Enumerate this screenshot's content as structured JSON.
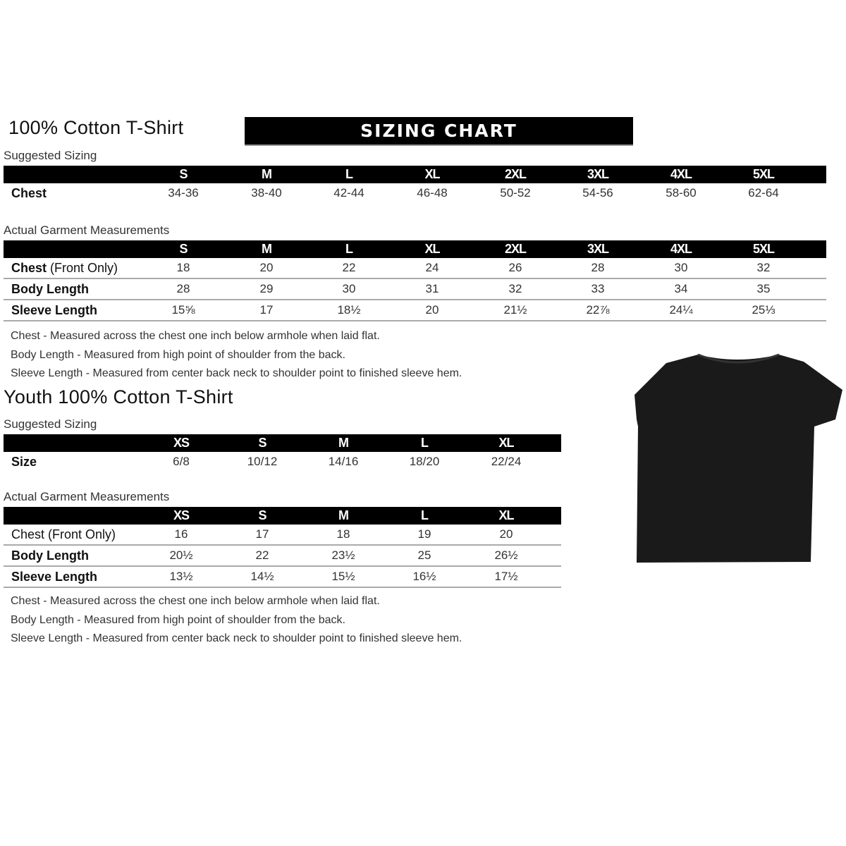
{
  "adult": {
    "title": "100% Cotton T-Shirt",
    "banner": "SIZING CHART",
    "suggested_label": "Suggested Sizing",
    "sizes": [
      "S",
      "M",
      "L",
      "XL",
      "2XL",
      "3XL",
      "4XL",
      "5XL"
    ],
    "suggested_rows": [
      {
        "label": "Chest",
        "values": [
          "34-36",
          "38-40",
          "42-44",
          "46-48",
          "50-52",
          "54-56",
          "58-60",
          "62-64"
        ]
      }
    ],
    "actual_label": "Actual Garment Measurements",
    "actual_rows": [
      {
        "label": "Chest",
        "label_suffix": " (Front Only)",
        "values": [
          "18",
          "20",
          "22",
          "24",
          "26",
          "28",
          "30",
          "32"
        ]
      },
      {
        "label": "Body Length",
        "label_suffix": "",
        "values": [
          "28",
          "29",
          "30",
          "31",
          "32",
          "33",
          "34",
          "35"
        ]
      },
      {
        "label": "Sleeve Length",
        "label_suffix": "",
        "values": [
          "15⅝",
          "17",
          "18½",
          "20",
          "21½",
          "22⅞",
          "24¼",
          "25⅓"
        ]
      }
    ],
    "notes": [
      "Chest - Measured across the chest one inch below armhole when laid flat.",
      "Body Length - Measured from high point of shoulder from the back.",
      "Sleeve Length - Measured from center back neck to shoulder point to finished sleeve hem."
    ]
  },
  "youth": {
    "title": "Youth 100% Cotton T-Shirt",
    "suggested_label": "Suggested Sizing",
    "sizes": [
      "XS",
      "S",
      "M",
      "L",
      "XL"
    ],
    "suggested_rows": [
      {
        "label": "Size",
        "values": [
          "6/8",
          "10/12",
          "14/16",
          "18/20",
          "22/24"
        ]
      }
    ],
    "actual_label": "Actual Garment Measurements",
    "actual_rows": [
      {
        "label": "Chest (Front Only)",
        "label_suffix": "",
        "values": [
          "16",
          "17",
          "18",
          "19",
          "20"
        ]
      },
      {
        "label": "Body Length",
        "label_suffix": "",
        "values": [
          "20½",
          "22",
          "23½",
          "25",
          "26½"
        ]
      },
      {
        "label": "Sleeve Length",
        "label_suffix": "",
        "values": [
          "13½",
          "14½",
          "15½",
          "16½",
          "17½"
        ]
      }
    ],
    "notes": [
      "Chest - Measured across the chest one inch below armhole when laid flat.",
      "Body Length - Measured from high point of shoulder from the back.",
      "Sleeve Length - Measured from center back neck to shoulder point to finished sleeve hem."
    ]
  },
  "image": {
    "icon": "black-tshirt",
    "color": "#1a1a1a"
  }
}
